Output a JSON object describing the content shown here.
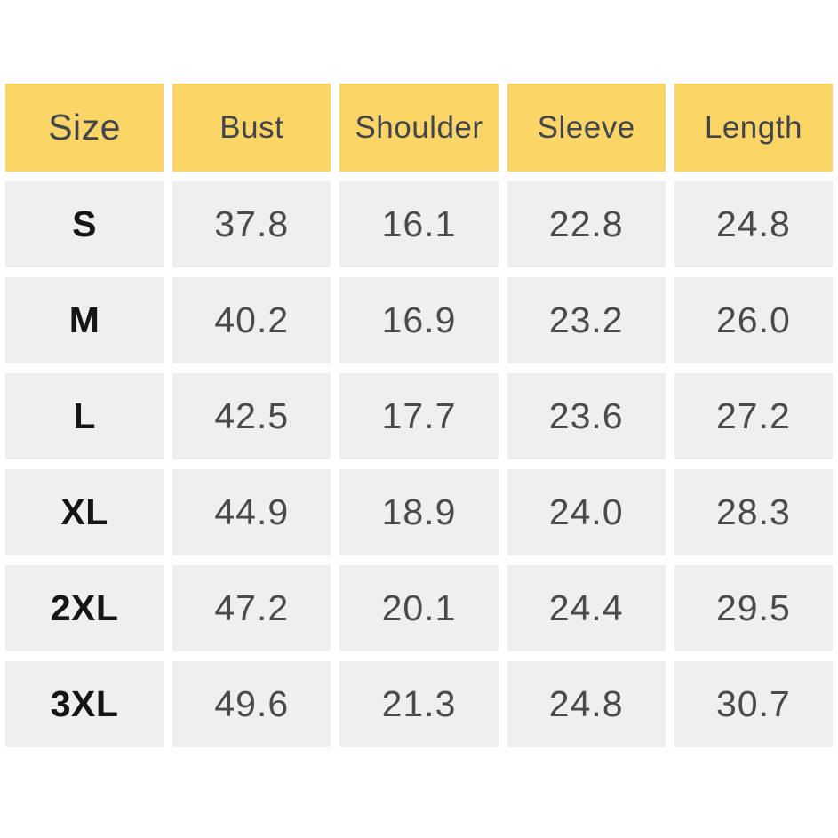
{
  "colors": {
    "header_bg": "#FBD666",
    "cell_bg": "#EFEFEF",
    "header_text": "#43454D",
    "size_text": "#151515",
    "value_text": "#4A4A4A",
    "page_bg": "#FFFFFF"
  },
  "chart_data": {
    "type": "table",
    "columns": [
      "Size",
      "Bust",
      "Shoulder",
      "Sleeve",
      "Length"
    ],
    "rows": [
      [
        "S",
        "37.8",
        "16.1",
        "22.8",
        "24.8"
      ],
      [
        "M",
        "40.2",
        "16.9",
        "23.2",
        "26.0"
      ],
      [
        "L",
        "42.5",
        "17.7",
        "23.6",
        "27.2"
      ],
      [
        "XL",
        "44.9",
        "18.9",
        "24.0",
        "28.3"
      ],
      [
        "2XL",
        "47.2",
        "20.1",
        "24.4",
        "29.5"
      ],
      [
        "3XL",
        "49.6",
        "21.3",
        "24.8",
        "30.7"
      ]
    ],
    "layout": {
      "header_background": "yellow",
      "body_background": "light-gray",
      "grid_gaps": "white"
    }
  }
}
